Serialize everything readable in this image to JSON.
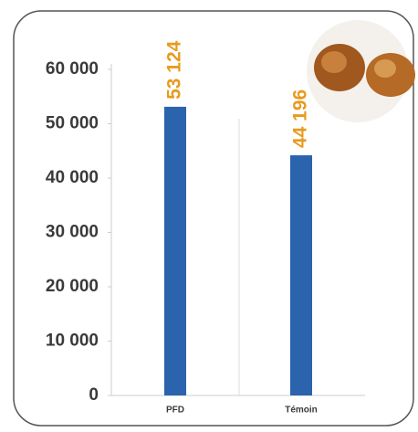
{
  "chart_data": {
    "type": "bar",
    "categories": [
      "PFD",
      "Témoin"
    ],
    "values": [
      53124,
      44196
    ],
    "value_labels": [
      "53 124",
      "44 196"
    ],
    "color": "#2b63ad",
    "label_color": "#e99a1c",
    "ylim": [
      0,
      60000
    ],
    "yticks": [
      0,
      {
        "value": 10000,
        "label": "10 000"
      },
      {
        "value": 20000,
        "label": "20 000"
      },
      {
        "value": 30000,
        "label": "30 000"
      },
      {
        "value": 40000,
        "label": "40 000"
      },
      {
        "value": 50000,
        "label": "50 000"
      },
      {
        "value": 60000,
        "label": "60 000"
      }
    ],
    "grid": false
  }
}
